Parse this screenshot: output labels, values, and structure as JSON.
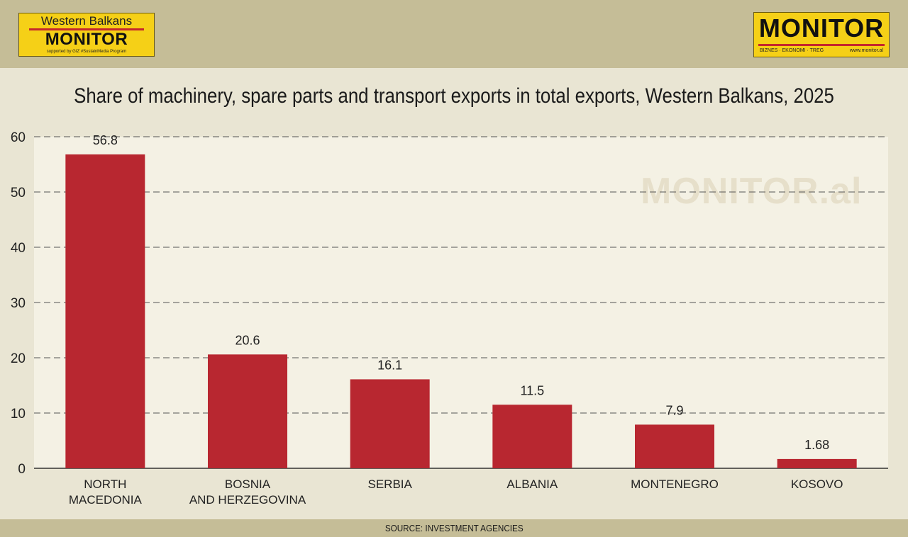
{
  "header": {
    "left_logo": {
      "top": "Western Balkans",
      "main": "MONITOR",
      "sub": "supported by GIZ #SustainMedia Program"
    },
    "right_logo": {
      "main": "MONITOR",
      "tagline": "BIZNES · EKONOMI · TREG",
      "url": "www.monitor.al"
    }
  },
  "watermark": "MONITOR.al",
  "footer": {
    "source": "SOURCE: INVESTMENT AGENCIES"
  },
  "colors": {
    "bar": "#b82730",
    "topbar": "#c5bd97",
    "plot_bg": "#f4f1e4",
    "logo_yellow": "#f5d017"
  },
  "chart_data": {
    "type": "bar",
    "title": "Share of machinery, spare parts and transport exports in total exports, Western Balkans, 2025",
    "categories": [
      [
        "NORTH",
        "MACEDONIA"
      ],
      [
        "BOSNIA",
        "AND HERZEGOVINA"
      ],
      [
        "SERBIA"
      ],
      [
        "ALBANIA"
      ],
      [
        "MONTENEGRO"
      ],
      [
        "KOSOVO"
      ]
    ],
    "values": [
      56.8,
      20.6,
      16.1,
      11.5,
      7.9,
      1.68
    ],
    "value_labels": [
      "56.8",
      "20.6",
      "16.1",
      "11.5",
      "7.9",
      "1.68"
    ],
    "yticks": [
      0,
      10,
      20,
      30,
      40,
      50,
      60
    ],
    "ylim": [
      0,
      60
    ],
    "grid": "dashed horizontal",
    "xlabel": "",
    "ylabel": ""
  }
}
